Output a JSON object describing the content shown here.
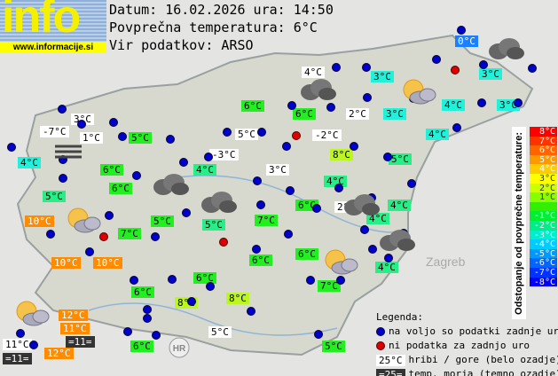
{
  "logo": {
    "word": "info",
    "url": "www.informacije.si"
  },
  "header": {
    "date_line": "Datum: 16.02.2026 ura: 14:50",
    "avg_line": "Povprečna temperatura: 6°C",
    "source_line": "Vir podatkov: ARSO"
  },
  "map_labels": {
    "hr": "HR",
    "zagreb": "Zagreb"
  },
  "stations": [
    {
      "t": "0°C",
      "style": "blue"
    },
    {
      "t": "4°C",
      "style": "white"
    },
    {
      "t": "3°C",
      "style": "cyan"
    },
    {
      "t": "3°C",
      "style": "cyan"
    },
    {
      "t": "6°C",
      "style": "green"
    },
    {
      "t": "6°C",
      "style": "green"
    },
    {
      "t": "2°C",
      "style": "white"
    },
    {
      "t": "3°C",
      "style": "cyan"
    },
    {
      "t": "4°C",
      "style": "cyan"
    },
    {
      "t": "3°C",
      "style": "cyan"
    },
    {
      "t": "3°C",
      "style": "white"
    },
    {
      "t": "-7°C",
      "style": "white"
    },
    {
      "t": "1°C",
      "style": "white"
    },
    {
      "t": "5°C",
      "style": "green"
    },
    {
      "t": "5°C",
      "style": "white"
    },
    {
      "t": "-2°C",
      "style": "white"
    },
    {
      "t": "4°C",
      "style": "cyan"
    },
    {
      "t": "4°C",
      "style": "cyan"
    },
    {
      "t": "8°C",
      "style": "yg"
    },
    {
      "t": "-3°C",
      "style": "white"
    },
    {
      "t": "5°C",
      "style": "cg"
    },
    {
      "t": "6°C",
      "style": "green"
    },
    {
      "t": "4°C",
      "style": "cg"
    },
    {
      "t": "3°C",
      "style": "white"
    },
    {
      "t": "6°C",
      "style": "green"
    },
    {
      "t": "4°C",
      "style": "cg"
    },
    {
      "t": "5°C",
      "style": "cg"
    },
    {
      "t": "6°C",
      "style": "green"
    },
    {
      "t": "2°C",
      "style": "white"
    },
    {
      "t": "4°C",
      "style": "cg"
    },
    {
      "t": "10°C",
      "style": "orange"
    },
    {
      "t": "5°C",
      "style": "green"
    },
    {
      "t": "7°C",
      "style": "green"
    },
    {
      "t": "4°C",
      "style": "cg"
    },
    {
      "t": "5°C",
      "style": "cg"
    },
    {
      "t": "7°C",
      "style": "green"
    },
    {
      "t": "6°C",
      "style": "green"
    },
    {
      "t": "6°C",
      "style": "green"
    },
    {
      "t": "10°C",
      "style": "orange"
    },
    {
      "t": "10°C",
      "style": "orange"
    },
    {
      "t": "4°C",
      "style": "cg"
    },
    {
      "t": "6°C",
      "style": "green"
    },
    {
      "t": "7°C",
      "style": "green"
    },
    {
      "t": "6°C",
      "style": "green"
    },
    {
      "t": "8°C",
      "style": "yg"
    },
    {
      "t": "8°C",
      "style": "yg"
    },
    {
      "t": "12°C",
      "style": "orange"
    },
    {
      "t": "11°C",
      "style": "orange"
    },
    {
      "t": "=11=",
      "style": "dark"
    },
    {
      "t": "11°C",
      "style": "white"
    },
    {
      "t": "=11=",
      "style": "dark"
    },
    {
      "t": "12°C",
      "style": "orange"
    },
    {
      "t": "5°C",
      "style": "white"
    },
    {
      "t": "6°C",
      "style": "green"
    },
    {
      "t": "5°C",
      "style": "green"
    }
  ],
  "scale": {
    "title": "Odstopanje od povprečne temperature:",
    "steps": [
      {
        "t": "8°C",
        "c": "#ff0000"
      },
      {
        "t": "7°C",
        "c": "#ff3300"
      },
      {
        "t": "6°C",
        "c": "#ff6600"
      },
      {
        "t": "5°C",
        "c": "#ff9900"
      },
      {
        "t": "4°C",
        "c": "#ffcc00"
      },
      {
        "t": "3°C",
        "c": "#ffff00"
      },
      {
        "t": "2°C",
        "c": "#ccff00"
      },
      {
        "t": "1°C",
        "c": "#88ff00"
      },
      {
        "t": "",
        "c": "#33ee00"
      },
      {
        "t": "-1°C",
        "c": "#00ee33"
      },
      {
        "t": "-2°C",
        "c": "#00ee88"
      },
      {
        "t": "-3°C",
        "c": "#00eecc"
      },
      {
        "t": "-4°C",
        "c": "#00ccff"
      },
      {
        "t": "-5°C",
        "c": "#0099ff"
      },
      {
        "t": "-6°C",
        "c": "#0066ff"
      },
      {
        "t": "-7°C",
        "c": "#0033ff"
      },
      {
        "t": "-8°C",
        "c": "#0000ff"
      }
    ]
  },
  "legend": {
    "title": "Legenda:",
    "available": "na voljo so podatki zadnje ure",
    "missing": "ni podatka za zadnjo uro",
    "mountain_sample": "25°C",
    "mountain": "hribi / gore (belo ozadje)",
    "sea_sample": "=25=",
    "sea": "temp. morja (temno ozadje)"
  }
}
